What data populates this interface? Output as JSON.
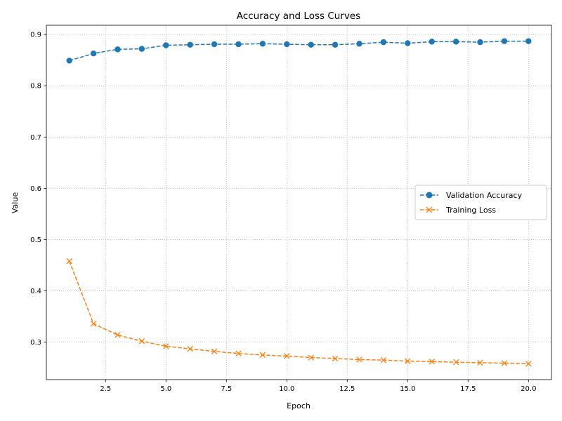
{
  "chart_data": {
    "type": "line",
    "title": "Accuracy and Loss Curves",
    "xlabel": "Epoch",
    "ylabel": "Value",
    "xlim": [
      0.05,
      20.95
    ],
    "ylim": [
      0.227,
      0.918
    ],
    "xticks": [
      "2.5",
      "5.0",
      "7.5",
      "10.0",
      "12.5",
      "15.0",
      "17.5",
      "20.0"
    ],
    "yticks": [
      "0.3",
      "0.4",
      "0.5",
      "0.6",
      "0.7",
      "0.8",
      "0.9"
    ],
    "grid": true,
    "legend_position": "center-right",
    "x": [
      1,
      2,
      3,
      4,
      5,
      6,
      7,
      8,
      9,
      10,
      11,
      12,
      13,
      14,
      15,
      16,
      17,
      18,
      19,
      20
    ],
    "series": [
      {
        "name": "Validation Accuracy",
        "color": "#1f77b4",
        "marker": "circle",
        "linestyle": "dashed",
        "values": [
          0.849,
          0.863,
          0.871,
          0.872,
          0.879,
          0.88,
          0.881,
          0.881,
          0.882,
          0.881,
          0.88,
          0.88,
          0.882,
          0.885,
          0.883,
          0.886,
          0.886,
          0.885,
          0.887,
          0.887
        ]
      },
      {
        "name": "Training Loss",
        "color": "#ff7f0e",
        "marker": "x",
        "linestyle": "dashed",
        "values": [
          0.458,
          0.336,
          0.314,
          0.302,
          0.292,
          0.287,
          0.282,
          0.278,
          0.275,
          0.273,
          0.27,
          0.268,
          0.266,
          0.265,
          0.263,
          0.262,
          0.261,
          0.26,
          0.259,
          0.258
        ]
      }
    ]
  }
}
